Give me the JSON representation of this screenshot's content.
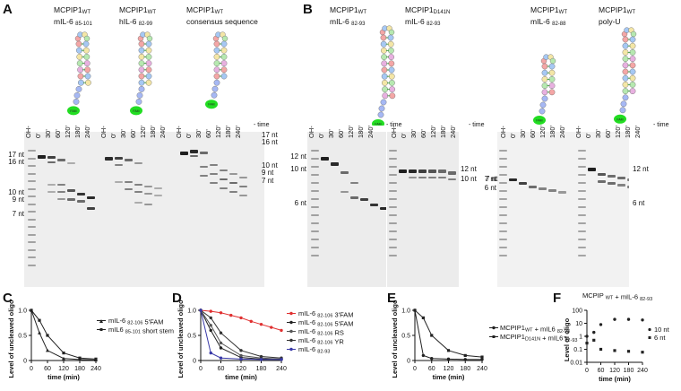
{
  "panels": {
    "A": "A",
    "B": "B",
    "C": "C",
    "D": "D",
    "E": "E",
    "F": "F"
  },
  "gel_headers": {
    "a1": {
      "protein": "MCPIP1",
      "protein_sub": "WT",
      "rna": "mIL-6",
      "rna_sub": "85-101"
    },
    "a2": {
      "protein": "MCPIP1",
      "protein_sub": "WT",
      "rna": "hIL-6",
      "rna_sub": "82-99"
    },
    "a3": {
      "protein": "MCPIP1",
      "protein_sub": "WT",
      "rna": "consensus sequence"
    },
    "b1": {
      "protein": "MCPIP1",
      "protein_sub": "WT",
      "rna": "mIL-6",
      "rna_sub": "82-93"
    },
    "b2": {
      "protein": "MCPIP1",
      "protein_sub": "D141N",
      "rna": "mIL-6",
      "rna_sub": "82-93"
    },
    "b3": {
      "protein": "MCPIP1",
      "protein_sub": "WT",
      "rna": "mIL-6",
      "rna_sub": "82-88"
    },
    "b4": {
      "protein": "MCPIP1",
      "protein_sub": "WT",
      "rna": "poly-U"
    }
  },
  "fam_label": "FAM",
  "time_labels": [
    "OH-",
    "0'",
    "30'",
    "60'",
    "120'",
    "180'",
    "240'"
  ],
  "time_suffix": "- time",
  "size_markers": {
    "a_left": [
      "17 nt",
      "16 nt",
      "10 nt",
      "9 nt",
      "7 nt"
    ],
    "a_right": [
      "17 nt",
      "16 nt",
      "10 nt",
      "9 nt",
      "7 nt"
    ],
    "b_left": [
      "12 nt",
      "10 nt",
      "6 nt"
    ],
    "b_mid": [
      "12 nt",
      "10 nt",
      "7 nt"
    ],
    "b3_left": [
      "7 nt",
      "6 nt"
    ],
    "b_right": [
      "12 nt",
      "6 nt"
    ]
  },
  "chart_data": [
    {
      "panel": "C",
      "type": "line",
      "ylabel": "Level of uncleaved oligo",
      "xlabel": "time (min)",
      "x": [
        0,
        60,
        120,
        180,
        240
      ],
      "ylim": [
        0,
        1.0
      ],
      "yticks": [
        "0",
        "0.5",
        "1.0"
      ],
      "xticks": [
        "0",
        "60",
        "120",
        "180",
        "240"
      ],
      "series": [
        {
          "name": "mIL-6 82-106 5'FAM",
          "marker": "triangle",
          "x": [
            0,
            30,
            60,
            120,
            180,
            240
          ],
          "values": [
            1.0,
            0.55,
            0.2,
            0.04,
            0.02,
            0.01
          ]
        },
        {
          "name": "mIL6 85-101 short stem",
          "marker": "square",
          "x": [
            0,
            30,
            60,
            120,
            180,
            240
          ],
          "values": [
            1.0,
            0.8,
            0.5,
            0.15,
            0.05,
            0.03
          ]
        }
      ]
    },
    {
      "panel": "D",
      "type": "line",
      "ylabel": "Level of uncleaved oligo",
      "xlabel": "time (min)",
      "ylim": [
        0,
        1.0
      ],
      "yticks": [
        "0",
        "0.5",
        "1.0"
      ],
      "xticks": [
        "0",
        "60",
        "120",
        "180",
        "240"
      ],
      "series": [
        {
          "name": "mIL-6 82-106 3'FAM",
          "color": "#e03030",
          "x": [
            0,
            30,
            60,
            90,
            120,
            150,
            180,
            210,
            240
          ],
          "values": [
            1.0,
            0.98,
            0.95,
            0.9,
            0.85,
            0.78,
            0.72,
            0.66,
            0.6
          ]
        },
        {
          "name": "mIL-6 82-106 5'FAM",
          "color": "#222222",
          "x": [
            0,
            30,
            60,
            120,
            180,
            240
          ],
          "values": [
            1.0,
            0.6,
            0.25,
            0.06,
            0.03,
            0.02
          ]
        },
        {
          "name": "mIL-6 82-106 RS",
          "color": "#555555",
          "x": [
            0,
            30,
            60,
            120,
            180,
            240
          ],
          "values": [
            1.0,
            0.7,
            0.35,
            0.1,
            0.05,
            0.03
          ]
        },
        {
          "name": "mIL-6 82-106 YR",
          "color": "#333333",
          "x": [
            0,
            30,
            60,
            120,
            180,
            240
          ],
          "values": [
            1.0,
            0.85,
            0.55,
            0.2,
            0.08,
            0.05
          ]
        },
        {
          "name": "mIL-6 82-93",
          "color": "#3a3aa8",
          "x": [
            0,
            30,
            60,
            120,
            180,
            240
          ],
          "values": [
            1.0,
            0.15,
            0.05,
            0.03,
            0.02,
            0.02
          ]
        }
      ]
    },
    {
      "panel": "E",
      "type": "line",
      "ylabel": "Level of uncleaved oligo",
      "xlabel": "time (min)",
      "ylim": [
        0,
        1.0
      ],
      "yticks": [
        "0",
        "0.5",
        "1.0"
      ],
      "xticks": [
        "0",
        "60",
        "120",
        "180",
        "240"
      ],
      "series": [
        {
          "name": "MCPIP1WT + mIL6 82-93",
          "marker": "circle",
          "x": [
            0,
            30,
            60,
            120,
            180,
            240
          ],
          "values": [
            1.0,
            0.1,
            0.04,
            0.03,
            0.02,
            0.02
          ]
        },
        {
          "name": "MCPIP1D141N + mIL6 82-93",
          "marker": "square",
          "x": [
            0,
            30,
            60,
            120,
            180,
            240
          ],
          "values": [
            1.0,
            0.85,
            0.5,
            0.2,
            0.1,
            0.07
          ]
        }
      ]
    },
    {
      "panel": "F",
      "type": "scatter",
      "title": "MCPIP WT + mIL-6 82-93",
      "ylabel": "Level of oligo",
      "xlabel": "time (min)",
      "yscale": "log",
      "ylim": [
        0.01,
        100
      ],
      "yticks": [
        "0.01",
        "0.1",
        "1",
        "10",
        "100"
      ],
      "xticks": [
        "0",
        "60",
        "120",
        "180",
        "240"
      ],
      "series": [
        {
          "name": "10 nt",
          "marker": "circle",
          "x": [
            0,
            30,
            60,
            120,
            180,
            240
          ],
          "values": [
            1.0,
            2.0,
            8.0,
            20.0,
            20.0,
            18.0
          ]
        },
        {
          "name": "6 nt",
          "marker": "square",
          "x": [
            0,
            30,
            60,
            120,
            180,
            240
          ],
          "values": [
            0.3,
            0.5,
            0.1,
            0.08,
            0.07,
            0.06
          ]
        }
      ]
    }
  ],
  "legends": {
    "C": [
      "mIL-6 82-106 5'FAM",
      "mIL6 85-101 short stem"
    ],
    "D": [
      "mIL-6 82-106 3'FAM",
      "mIL-6 82-106 5'FAM",
      "mIL-6 82-106 RS",
      "mIL-6 82-106 YR",
      "mIL-6 82-93"
    ],
    "E": [
      "MCPIP1WT + mIL6 82-93",
      "MCPIP1D141N + mIL6 82-93"
    ],
    "F": [
      "10 nt",
      "6 nt"
    ]
  },
  "legend_parts": {
    "C": [
      {
        "base": "mIL-6 ",
        "sub": "82-106",
        "tail": " 5'FAM"
      },
      {
        "base": "mIL6 ",
        "sub": "85-101",
        "tail": " short stem"
      }
    ],
    "D": [
      {
        "base": "mIL-6 ",
        "sub": "82-106",
        "tail": " 3'FAM"
      },
      {
        "base": "mIL-6 ",
        "sub": "82-106",
        "tail": " 5'FAM"
      },
      {
        "base": "mIL-6 ",
        "sub": "82-106",
        "tail": " RS"
      },
      {
        "base": "mIL-6 ",
        "sub": "82-106",
        "tail": " YR"
      },
      {
        "base": "mIL-6 ",
        "sub": "82-93",
        "tail": ""
      }
    ],
    "E": [
      {
        "base": "MCPIP1",
        "sub1": "WT",
        "mid": " + mIL6 ",
        "sub": "82-93"
      },
      {
        "base": "MCPIP1",
        "sub1": "D141N",
        "mid": " + mIL6 ",
        "sub": "82-93"
      }
    ],
    "F_title": {
      "base": "MCPIP ",
      "sub1": "WT",
      "mid": " + mIL-6 ",
      "sub": "82-93"
    }
  }
}
